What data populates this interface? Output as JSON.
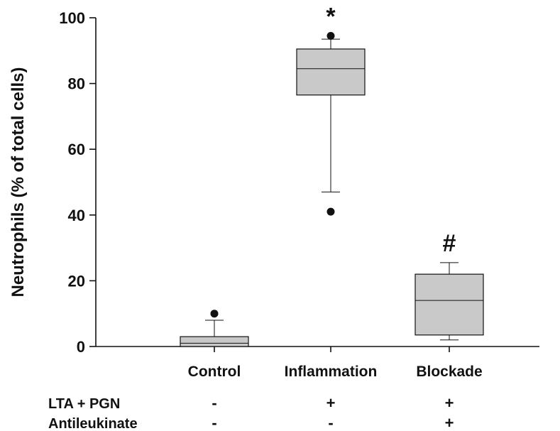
{
  "chart_data": {
    "type": "boxplot",
    "ylabel": "Neutrophils (% of total cells)",
    "ylim": [
      0,
      100
    ],
    "yticks": [
      0,
      20,
      40,
      60,
      80,
      100
    ],
    "categories": [
      "Control",
      "Inflammation",
      "Blockade"
    ],
    "boxes": [
      {
        "category": "Control",
        "whisker_low": 0,
        "q1": 0,
        "median": 1,
        "q3": 3,
        "whisker_high": 8,
        "outliers": [
          10
        ],
        "annotation": ""
      },
      {
        "category": "Inflammation",
        "whisker_low": 47,
        "q1": 76.5,
        "median": 84.5,
        "q3": 90.5,
        "whisker_high": 93.5,
        "outliers": [
          41,
          94.5
        ],
        "annotation": "*"
      },
      {
        "category": "Blockade",
        "whisker_low": 2,
        "q1": 3.5,
        "median": 14,
        "q3": 22,
        "whisker_high": 25.5,
        "outliers": [],
        "annotation": "#"
      }
    ],
    "conditions": [
      {
        "label": "LTA + PGN",
        "marks": [
          "-",
          "+",
          "+"
        ]
      },
      {
        "label": "Antileukinate",
        "marks": [
          "-",
          "-",
          "+"
        ]
      }
    ],
    "colors": {
      "box_fill": "#c8c9c8",
      "stroke": "#111111"
    }
  }
}
